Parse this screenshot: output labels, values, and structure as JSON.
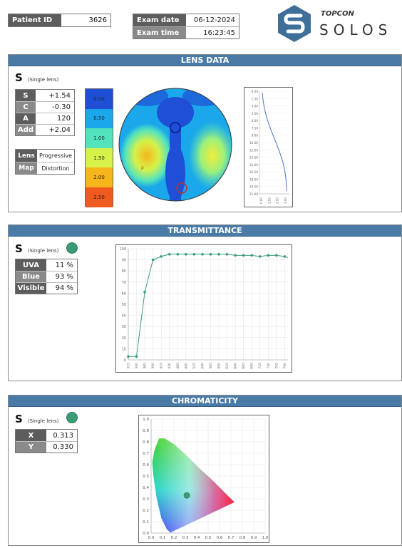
{
  "header": {
    "patient_id_label": "Patient ID",
    "patient_id_value": "3626",
    "exam_date_label": "Exam date",
    "exam_date_value": "06-12-2024",
    "exam_time_label": "Exam time",
    "exam_time_value": "16:23:45",
    "logo_brand": "TOPCON",
    "logo_product": "SOLOS"
  },
  "lens_data": {
    "title": "LENS DATA",
    "eye_letter": "S",
    "lens_type": "(Single lens)",
    "params": [
      {
        "label": "S",
        "value": "+1.54"
      },
      {
        "label": "C",
        "value": "-0.30"
      },
      {
        "label": "A",
        "value": "120"
      },
      {
        "label": "Add",
        "value": "+2.04"
      }
    ],
    "info": [
      {
        "label": "Lens",
        "value": "Progressive"
      },
      {
        "label": "Map",
        "value": "Distortion"
      }
    ],
    "scale": [
      {
        "label": "0.00",
        "color": "#1f4fd6"
      },
      {
        "label": "0.50",
        "color": "#1aa8ea"
      },
      {
        "label": "1.00",
        "color": "#55e3bd"
      },
      {
        "label": "1.50",
        "color": "#d6f24a"
      },
      {
        "label": "2.00",
        "color": "#f7b51c"
      },
      {
        "label": "2.50",
        "color": "#ef5a1e"
      }
    ],
    "profile_ticks": [
      "0.00",
      "1.50",
      "3.00",
      "4.50",
      "6.00",
      "7.50",
      "9.00",
      "10.50",
      "12.00",
      "13.50",
      "15.00",
      "16.50",
      "18.00",
      "19.50",
      "21.00"
    ],
    "profile_x_ticks": [
      "0.00",
      "1.00",
      "2.00",
      "3.00"
    ]
  },
  "transmittance": {
    "title": "TRANSMITTANCE",
    "eye_letter": "S",
    "lens_type": "(Single lens)",
    "dot_color": "#3a9c77",
    "params": [
      {
        "label": "UVA",
        "value": "11 %"
      },
      {
        "label": "Blue",
        "value": "93 %"
      },
      {
        "label": "Visible",
        "value": "94 %"
      }
    ]
  },
  "chromaticity": {
    "title": "CHROMATICITY",
    "eye_letter": "S",
    "lens_type": "(Single lens)",
    "dot_color": "#3a9c77",
    "params": [
      {
        "label": "X",
        "value": "0.313"
      },
      {
        "label": "Y",
        "value": "0.330"
      }
    ]
  },
  "chart_data": [
    {
      "type": "line",
      "x": [
        315,
        340,
        365,
        390,
        415,
        440,
        465,
        490,
        515,
        540,
        565,
        590,
        615,
        640,
        665,
        690,
        715,
        740,
        765,
        790
      ],
      "x_tick_labels": [
        "315",
        "340",
        "365",
        "390",
        "415",
        "440",
        "465",
        "490",
        "515",
        "540",
        "565",
        "590",
        "615",
        "640",
        "665",
        "690",
        "715",
        "740",
        "765",
        "790"
      ],
      "series": [
        {
          "values": [
            3,
            3,
            61,
            90,
            93,
            95,
            95,
            95,
            95,
            95,
            95,
            95,
            95,
            94,
            94,
            94,
            93,
            94,
            94,
            93
          ]
        }
      ],
      "xlim": [
        315,
        800
      ],
      "ylim": [
        0,
        100
      ],
      "y_ticks": [
        0,
        10,
        20,
        30,
        40,
        50,
        60,
        70,
        80,
        90,
        100
      ],
      "grid": true
    },
    {
      "type": "scatter",
      "x": [
        0.313
      ],
      "y": [
        0.33
      ],
      "xlim": [
        0,
        1.0
      ],
      "ylim": [
        0,
        1.0
      ],
      "x_ticks": [
        "0.0",
        "0.1",
        "0.2",
        "0.3",
        "0.4",
        "0.5",
        "0.6",
        "0.7",
        "0.8",
        "0.9",
        "1.0"
      ],
      "y_ticks": [
        "0.0",
        "0.1",
        "0.2",
        "0.3",
        "0.4",
        "0.5",
        "0.6",
        "0.7",
        "0.8",
        "0.9",
        "1.0"
      ],
      "grid": true
    }
  ]
}
